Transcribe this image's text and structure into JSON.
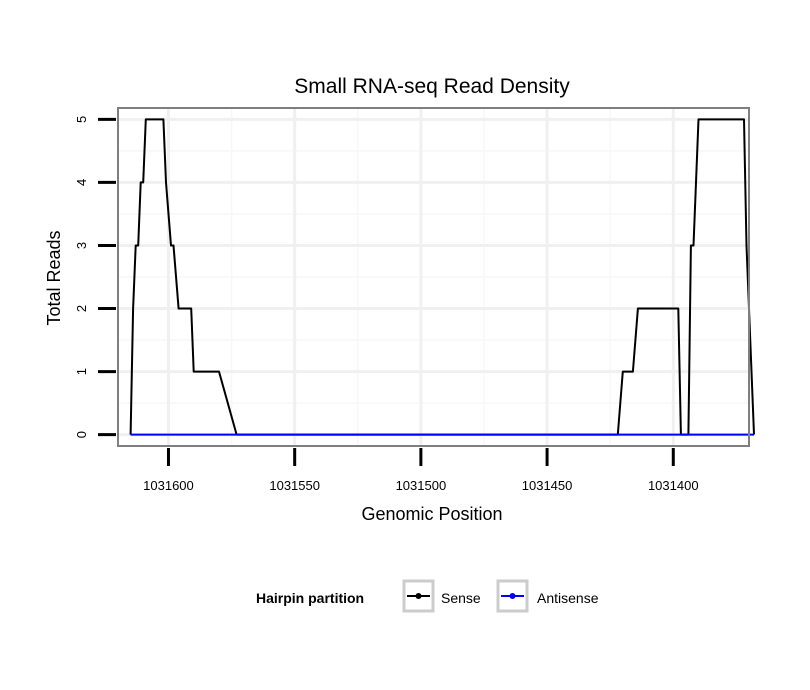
{
  "chart_data": {
    "type": "line",
    "title": "Small RNA-seq Read Density",
    "xlabel": "Genomic Position",
    "ylabel": "Total Reads",
    "x_reversed": true,
    "xlim": [
      1031620,
      1031370
    ],
    "ylim": [
      -0.18,
      5.18
    ],
    "x_ticks": [
      1031600,
      1031550,
      1031500,
      1031450,
      1031400
    ],
    "x_tick_labels": [
      "1031600",
      "1031550",
      "1031500",
      "1031450",
      "1031400"
    ],
    "y_ticks": [
      0,
      1,
      2,
      3,
      4,
      5
    ],
    "y_tick_labels": [
      "0",
      "1",
      "2",
      "3",
      "4",
      "5"
    ],
    "grid": true,
    "legend": {
      "title": "Hairpin partition",
      "position": "bottom",
      "entries": [
        {
          "label": "Sense",
          "color": "#000000"
        },
        {
          "label": "Antisense",
          "color": "#0000ff"
        }
      ]
    },
    "series": [
      {
        "name": "Sense",
        "color": "#000000",
        "x": [
          1031615,
          1031614,
          1031613,
          1031612,
          1031611,
          1031610,
          1031609,
          1031608,
          1031602,
          1031601,
          1031599,
          1031598,
          1031596,
          1031591,
          1031590,
          1031589,
          1031580,
          1031573,
          1031572,
          1031422,
          1031420,
          1031419,
          1031416,
          1031414,
          1031398,
          1031397,
          1031395,
          1031394,
          1031393,
          1031392,
          1031390,
          1031372,
          1031371,
          1031370,
          1031368
        ],
        "y": [
          0,
          2,
          3,
          3,
          4,
          4,
          5,
          5,
          5,
          4,
          3,
          3,
          2,
          2,
          1,
          1,
          1,
          0,
          0,
          0,
          1,
          1,
          1,
          2,
          2,
          0,
          0,
          0,
          3,
          3,
          5,
          5,
          3,
          2,
          0
        ]
      },
      {
        "name": "Antisense",
        "color": "#0000ff",
        "x": [
          1031615,
          1031368
        ],
        "y": [
          0,
          0
        ]
      }
    ]
  }
}
